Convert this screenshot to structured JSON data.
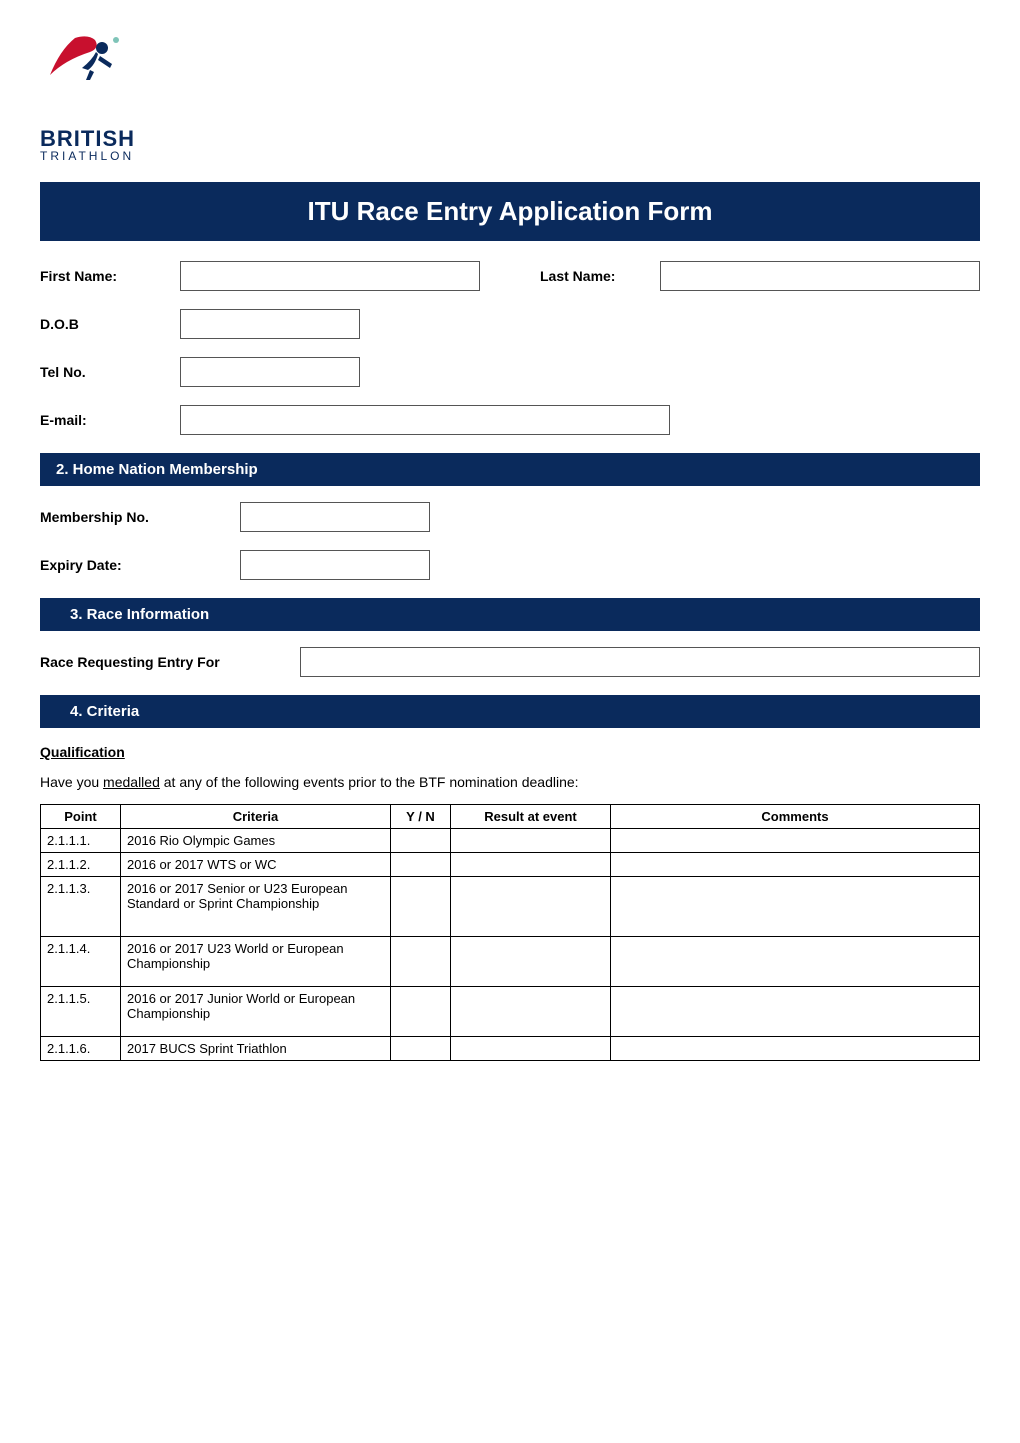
{
  "logo": {
    "top": "BRITISH",
    "bottom": "TRIATHLON",
    "swoosh_color": "#c8102e",
    "figure_color": "#0a2a5c",
    "dot_color": "#7fc4b8"
  },
  "title": "ITU Race Entry Application Form",
  "section1": {
    "first_name_label": "First Name:",
    "last_name_label": "Last Name:",
    "dob_label": "D.O.B",
    "tel_label": "Tel No.",
    "email_label": "E-mail:"
  },
  "section2": {
    "header": "2. Home Nation Membership",
    "membership_label": "Membership No.",
    "expiry_label": "Expiry Date:"
  },
  "section3": {
    "header": "3.   Race Information",
    "race_label": "Race Requesting Entry For"
  },
  "section4": {
    "header": "4.  Criteria",
    "qualification_heading": "Qualification",
    "intro_prefix": "Have you ",
    "intro_underlined": "medalled",
    "intro_suffix": " at any of the following events prior to the BTF nomination deadline:"
  },
  "criteria_table": {
    "headers": {
      "point": "Point",
      "criteria": "Criteria",
      "yn": "Y / N",
      "result": "Result at event",
      "comments": "Comments"
    },
    "rows": [
      {
        "point": "2.1.1.1.",
        "criteria": "2016 Rio Olympic Games",
        "yn": "",
        "result": "",
        "comments": ""
      },
      {
        "point": "2.1.1.2.",
        "criteria": "2016 or 2017 WTS or WC",
        "yn": "",
        "result": "",
        "comments": ""
      },
      {
        "point": "2.1.1.3.",
        "criteria": "2016 or 2017 Senior or U23 European Standard or Sprint Championship",
        "yn": "",
        "result": "",
        "comments": ""
      },
      {
        "point": "2.1.1.4.",
        "criteria": "2016 or 2017 U23 World or European Championship",
        "yn": "",
        "result": "",
        "comments": ""
      },
      {
        "point": "2.1.1.5.",
        "criteria": "2016 or 2017 Junior World or European Championship",
        "yn": "",
        "result": "",
        "comments": ""
      },
      {
        "point": "2.1.1.6.",
        "criteria": "2017 BUCS Sprint Triathlon",
        "yn": "",
        "result": "",
        "comments": ""
      }
    ]
  },
  "colors": {
    "bar_bg": "#0a2a5c",
    "bar_fg": "#ffffff",
    "text": "#000000",
    "border": "#000000"
  }
}
